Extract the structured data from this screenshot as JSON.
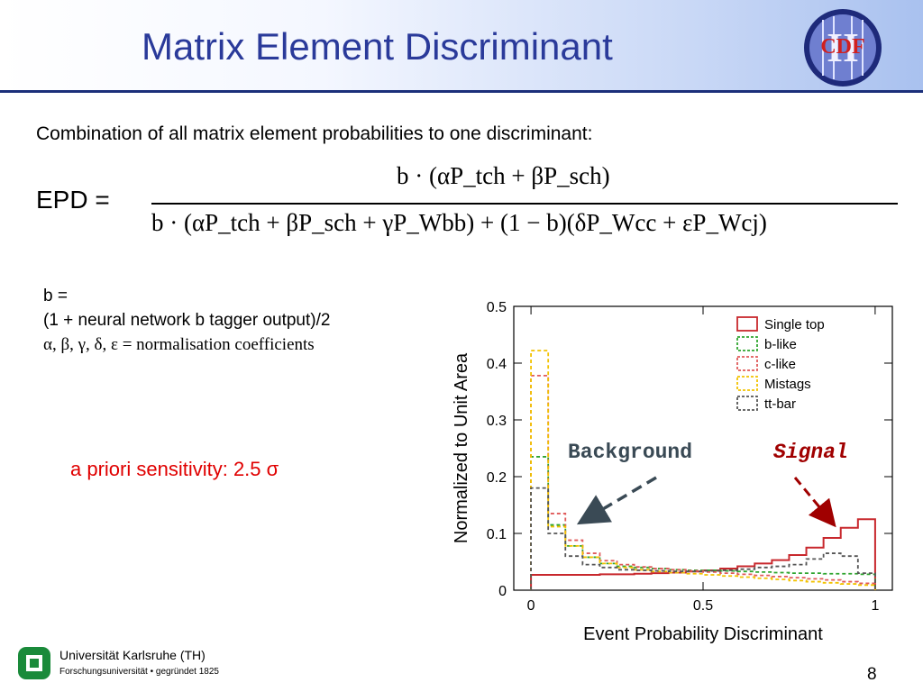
{
  "slide": {
    "title": "Matrix Element Discriminant",
    "intro": "Combination of all matrix element probabilities to one discriminant:",
    "equation": {
      "lhs": "EPD =",
      "numerator": "b · (αP_tch + βP_sch)",
      "denominator": "b · (αP_tch + βP_sch + γP_Wbb) + (1 − b)(δP_Wcc + εP_Wcj)"
    },
    "notes": [
      "b =",
      "(1 + neural network b tagger output)/2",
      "α, β, γ, δ, ε = normalisation coefficients"
    ],
    "sensitivity": "a priori sensitivity: 2.5 σ",
    "background_label": "Background",
    "signal_label": "Signal",
    "logo_text": "CDF",
    "logo_numeral": "II",
    "university": "Universität Karlsruhe (TH)",
    "university_sub": "Forschungsuniversität • gegründet 1825",
    "page_number": "8"
  },
  "colors": {
    "title": "#2a3a9a",
    "header_rule": "#1b2f7a",
    "sensitivity": "#e00000",
    "signal_label": "#a00000",
    "background_label": "#3a4a55"
  },
  "chart_data": {
    "type": "line",
    "xlabel": "Event Probability Discriminant",
    "ylabel": "Normalized to Unit Area",
    "xlim": [
      -0.05,
      1.05
    ],
    "ylim": [
      0,
      0.5
    ],
    "xticks": [
      0,
      0.5,
      1
    ],
    "yticks": [
      0,
      0.1,
      0.2,
      0.3,
      0.4,
      0.5
    ],
    "legend_position": "top-right",
    "bin_edges": [
      0,
      0.05,
      0.1,
      0.15,
      0.2,
      0.25,
      0.3,
      0.35,
      0.4,
      0.45,
      0.5,
      0.55,
      0.6,
      0.65,
      0.7,
      0.75,
      0.8,
      0.85,
      0.9,
      0.95,
      1.0
    ],
    "series": [
      {
        "name": "Single top",
        "color": "#c8282d",
        "dash": false,
        "values": [
          0.027,
          0.027,
          0.027,
          0.027,
          0.028,
          0.028,
          0.029,
          0.03,
          0.031,
          0.033,
          0.035,
          0.038,
          0.042,
          0.047,
          0.053,
          0.062,
          0.075,
          0.092,
          0.11,
          0.125
        ]
      },
      {
        "name": "b-like",
        "color": "#2fa52f",
        "dash": true,
        "values": [
          0.235,
          0.115,
          0.078,
          0.058,
          0.047,
          0.042,
          0.04,
          0.038,
          0.036,
          0.035,
          0.035,
          0.034,
          0.033,
          0.032,
          0.031,
          0.03,
          0.03,
          0.029,
          0.029,
          0.028
        ]
      },
      {
        "name": "c-like",
        "color": "#e05a5a",
        "dash": true,
        "values": [
          0.378,
          0.135,
          0.088,
          0.065,
          0.052,
          0.045,
          0.041,
          0.038,
          0.036,
          0.034,
          0.032,
          0.03,
          0.028,
          0.026,
          0.024,
          0.022,
          0.02,
          0.018,
          0.015,
          0.012
        ]
      },
      {
        "name": "Mistags",
        "color": "#f2c200",
        "dash": true,
        "values": [
          0.422,
          0.112,
          0.078,
          0.058,
          0.047,
          0.04,
          0.036,
          0.033,
          0.031,
          0.029,
          0.027,
          0.025,
          0.023,
          0.021,
          0.019,
          0.017,
          0.015,
          0.013,
          0.011,
          0.009
        ]
      },
      {
        "name": "tt-bar",
        "color": "#555555",
        "dash": true,
        "values": [
          0.18,
          0.1,
          0.06,
          0.045,
          0.04,
          0.036,
          0.035,
          0.034,
          0.033,
          0.033,
          0.034,
          0.035,
          0.037,
          0.04,
          0.042,
          0.045,
          0.055,
          0.065,
          0.06,
          0.03
        ]
      }
    ]
  }
}
